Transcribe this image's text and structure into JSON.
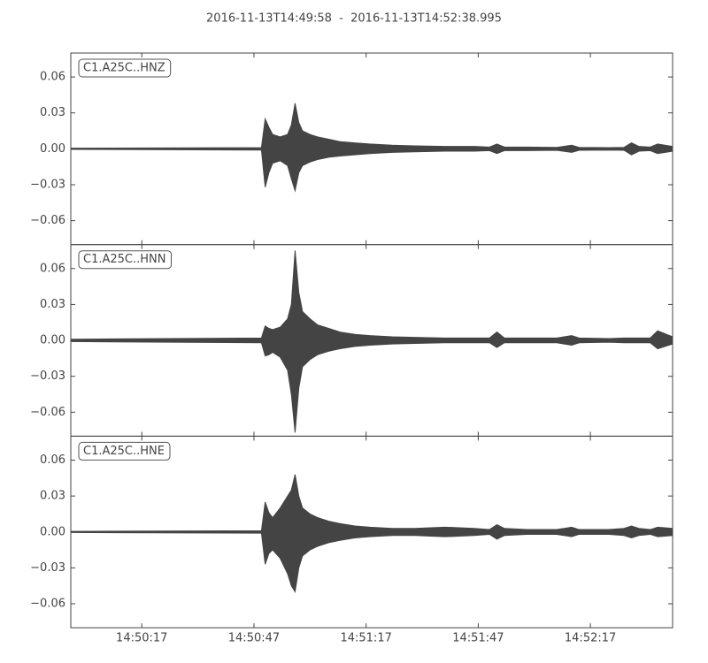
{
  "title": "2016-11-13T14:49:58  -  2016-11-13T14:52:38.995",
  "chart_data": [
    {
      "type": "line",
      "label": "C1.A25C..HNZ",
      "x": [
        "14:49:58",
        "14:50:49",
        "14:50:50",
        "14:50:51",
        "14:50:52",
        "14:50:54",
        "14:50:56",
        "14:50:57",
        "14:50:58",
        "14:50:59",
        "14:51:00",
        "14:51:02",
        "14:51:04",
        "14:51:07",
        "14:51:10",
        "14:51:14",
        "14:51:18",
        "14:51:24",
        "14:51:30",
        "14:51:38",
        "14:51:46",
        "14:51:50",
        "14:51:52",
        "14:51:54",
        "14:52:00",
        "14:52:08",
        "14:52:12",
        "14:52:14",
        "14:52:22",
        "14:52:26",
        "14:52:28",
        "14:52:30",
        "14:52:33",
        "14:52:35",
        "14:52:38.995"
      ],
      "series": [
        {
          "color": "#444444",
          "values": [
            0.0005,
            0.001,
            0.025,
            0.018,
            0.012,
            0.01,
            0.012,
            0.02,
            0.038,
            0.022,
            0.015,
            0.012,
            0.01,
            0.008,
            0.006,
            0.005,
            0.004,
            0.003,
            0.0025,
            0.002,
            0.002,
            0.0015,
            0.004,
            0.0015,
            0.0015,
            0.0012,
            0.003,
            0.0012,
            0.001,
            0.0012,
            0.005,
            0.002,
            0.0015,
            0.004,
            0.002
          ]
        },
        {
          "color": "#444444",
          "values": [
            -0.0005,
            -0.001,
            -0.032,
            -0.02,
            -0.012,
            -0.01,
            -0.014,
            -0.025,
            -0.035,
            -0.02,
            -0.014,
            -0.011,
            -0.009,
            -0.007,
            -0.006,
            -0.005,
            -0.004,
            -0.003,
            -0.0025,
            -0.002,
            -0.002,
            -0.0015,
            -0.004,
            -0.0015,
            -0.0015,
            -0.0012,
            -0.003,
            -0.0012,
            -0.001,
            -0.0012,
            -0.005,
            -0.002,
            -0.0015,
            -0.004,
            -0.002
          ]
        }
      ],
      "xlim": [
        "14:49:58",
        "14:52:38.995"
      ],
      "ylim": [
        -0.08,
        0.08
      ],
      "yticks": [
        {
          "value": -0.06,
          "label": "−0.06"
        },
        {
          "value": -0.03,
          "label": "−0.03"
        },
        {
          "value": 0,
          "label": "0.00"
        },
        0.03,
        0.06
      ]
    },
    {
      "type": "line",
      "label": "C1.A25C..HNN",
      "x": [
        "14:49:58",
        "14:50:49",
        "14:50:50",
        "14:50:51",
        "14:50:52",
        "14:50:54",
        "14:50:56",
        "14:50:57",
        "14:50:58",
        "14:50:59",
        "14:51:00",
        "14:51:02",
        "14:51:04",
        "14:51:07",
        "14:51:10",
        "14:51:14",
        "14:51:18",
        "14:51:24",
        "14:51:30",
        "14:51:38",
        "14:51:46",
        "14:51:50",
        "14:51:52",
        "14:51:54",
        "14:52:00",
        "14:52:08",
        "14:52:12",
        "14:52:14",
        "14:52:22",
        "14:52:26",
        "14:52:28",
        "14:52:30",
        "14:52:33",
        "14:52:35",
        "14:52:38.995"
      ],
      "series": [
        {
          "color": "#444444",
          "values": [
            0.001,
            0.002,
            0.012,
            0.01,
            0.009,
            0.011,
            0.018,
            0.03,
            0.075,
            0.04,
            0.024,
            0.018,
            0.013,
            0.01,
            0.007,
            0.005,
            0.004,
            0.003,
            0.0025,
            0.002,
            0.002,
            0.002,
            0.007,
            0.002,
            0.002,
            0.002,
            0.004,
            0.002,
            0.0015,
            0.002,
            0.002,
            0.002,
            0.002,
            0.008,
            0.003
          ]
        },
        {
          "color": "#444444",
          "values": [
            -0.001,
            -0.002,
            -0.013,
            -0.012,
            -0.01,
            -0.014,
            -0.025,
            -0.045,
            -0.077,
            -0.04,
            -0.022,
            -0.016,
            -0.012,
            -0.009,
            -0.007,
            -0.005,
            -0.004,
            -0.003,
            -0.0025,
            -0.002,
            -0.002,
            -0.002,
            -0.006,
            -0.002,
            -0.002,
            -0.002,
            -0.004,
            -0.002,
            -0.0015,
            -0.002,
            -0.002,
            -0.002,
            -0.002,
            -0.007,
            -0.003
          ]
        }
      ],
      "xlim": [
        "14:49:58",
        "14:52:38.995"
      ],
      "ylim": [
        -0.08,
        0.08
      ],
      "yticks": [
        {
          "value": -0.06,
          "label": "−0.06"
        },
        {
          "value": -0.03,
          "label": "−0.03"
        },
        {
          "value": 0,
          "label": "0.00"
        },
        0.03,
        0.06
      ]
    },
    {
      "type": "line",
      "label": "C1.A25C..HNE",
      "x": [
        "14:49:58",
        "14:50:49",
        "14:50:50",
        "14:50:51",
        "14:50:52",
        "14:50:54",
        "14:50:56",
        "14:50:57",
        "14:50:58",
        "14:50:59",
        "14:51:00",
        "14:51:02",
        "14:51:04",
        "14:51:07",
        "14:51:10",
        "14:51:14",
        "14:51:18",
        "14:51:24",
        "14:51:30",
        "14:51:38",
        "14:51:46",
        "14:51:50",
        "14:51:52",
        "14:51:54",
        "14:52:00",
        "14:52:08",
        "14:52:12",
        "14:52:14",
        "14:52:22",
        "14:52:26",
        "14:52:28",
        "14:52:30",
        "14:52:33",
        "14:52:35",
        "14:52:38.995"
      ],
      "series": [
        {
          "color": "#444444",
          "values": [
            0.0005,
            0.001,
            0.025,
            0.016,
            0.012,
            0.02,
            0.03,
            0.035,
            0.048,
            0.03,
            0.02,
            0.015,
            0.012,
            0.009,
            0.007,
            0.005,
            0.004,
            0.003,
            0.003,
            0.004,
            0.003,
            0.002,
            0.006,
            0.003,
            0.002,
            0.002,
            0.004,
            0.002,
            0.002,
            0.003,
            0.005,
            0.003,
            0.002,
            0.004,
            0.003
          ]
        },
        {
          "color": "#444444",
          "values": [
            -0.0005,
            -0.001,
            -0.027,
            -0.018,
            -0.015,
            -0.022,
            -0.035,
            -0.045,
            -0.05,
            -0.03,
            -0.02,
            -0.015,
            -0.012,
            -0.009,
            -0.007,
            -0.005,
            -0.004,
            -0.003,
            -0.003,
            -0.004,
            -0.003,
            -0.002,
            -0.006,
            -0.003,
            -0.002,
            -0.002,
            -0.004,
            -0.002,
            -0.002,
            -0.003,
            -0.005,
            -0.003,
            -0.002,
            -0.004,
            -0.003
          ]
        }
      ],
      "xlim": [
        "14:49:58",
        "14:52:38.995"
      ],
      "xticks": [
        "14:50:17",
        "14:50:47",
        "14:51:17",
        "14:51:47",
        "14:52:17"
      ],
      "ylim": [
        -0.08,
        0.08
      ],
      "yticks": [
        {
          "value": -0.06,
          "label": "−0.06"
        },
        {
          "value": -0.03,
          "label": "−0.03"
        },
        {
          "value": 0,
          "label": "0.00"
        },
        0.03,
        0.06
      ]
    }
  ]
}
